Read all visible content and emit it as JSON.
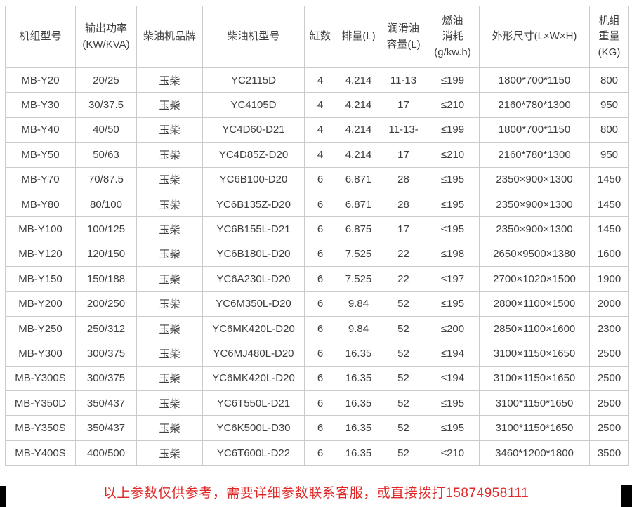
{
  "colors": {
    "table_border": "#cbcbcb",
    "table_text": "#3e3e3e",
    "notice_red": "#e02626",
    "corner_bar_black": "#000000",
    "background": "#ffffff"
  },
  "table": {
    "columns": [
      {
        "key": "model",
        "label": "机组型号"
      },
      {
        "key": "power",
        "label": "输出功率\n(KW/KVA)"
      },
      {
        "key": "brand",
        "label": "柴油机品牌"
      },
      {
        "key": "engine_model",
        "label": "柴油机型号"
      },
      {
        "key": "cylinders",
        "label": "缸数"
      },
      {
        "key": "displacement",
        "label": "排量(L)"
      },
      {
        "key": "oil_capacity",
        "label": "润滑油\n容量(L)"
      },
      {
        "key": "fuel_consumption",
        "label": "燃油\n消耗\n(g/kw.h)"
      },
      {
        "key": "dimensions",
        "label": "外形尺寸(L×W×H)"
      },
      {
        "key": "weight",
        "label": "机组\n重量\n(KG)"
      }
    ],
    "rows": [
      {
        "model": "MB-Y20",
        "power": "20/25",
        "brand": "玉柴",
        "engine_model": "YC2115D",
        "cylinders": "4",
        "displacement": "4.214",
        "oil_capacity": "11-13",
        "fuel_consumption": "≤199",
        "dimensions": "1800*700*1150",
        "weight": "800"
      },
      {
        "model": "MB-Y30",
        "power": "30/37.5",
        "brand": "玉柴",
        "engine_model": "YC4105D",
        "cylinders": "4",
        "displacement": "4.214",
        "oil_capacity": "17",
        "fuel_consumption": "≤210",
        "dimensions": "2160*780*1300",
        "weight": "950"
      },
      {
        "model": "MB-Y40",
        "power": "40/50",
        "brand": "玉柴",
        "engine_model": "YC4D60-D21",
        "cylinders": "4",
        "displacement": "4.214",
        "oil_capacity": "11-13-",
        "fuel_consumption": "≤199",
        "dimensions": "1800*700*1150",
        "weight": "800"
      },
      {
        "model": "MB-Y50",
        "power": "50/63",
        "brand": "玉柴",
        "engine_model": "YC4D85Z-D20",
        "cylinders": "4",
        "displacement": "4.214",
        "oil_capacity": "17",
        "fuel_consumption": "≤210",
        "dimensions": "2160*780*1300",
        "weight": "950"
      },
      {
        "model": "MB-Y70",
        "power": "70/87.5",
        "brand": "玉柴",
        "engine_model": "YC6B100-D20",
        "cylinders": "6",
        "displacement": "6.871",
        "oil_capacity": "28",
        "fuel_consumption": "≤195",
        "dimensions": "2350×900×1300",
        "weight": "1450"
      },
      {
        "model": "MB-Y80",
        "power": "80/100",
        "brand": "玉柴",
        "engine_model": "YC6B135Z-D20",
        "cylinders": "6",
        "displacement": "6.871",
        "oil_capacity": "28",
        "fuel_consumption": "≤195",
        "dimensions": "2350×900×1300",
        "weight": "1450"
      },
      {
        "model": "MB-Y100",
        "power": "100/125",
        "brand": "玉柴",
        "engine_model": "YC6B155L-D21",
        "cylinders": "6",
        "displacement": "6.875",
        "oil_capacity": "17",
        "fuel_consumption": "≤195",
        "dimensions": "2350×900×1300",
        "weight": "1450"
      },
      {
        "model": "MB-Y120",
        "power": "120/150",
        "brand": "玉柴",
        "engine_model": "YC6B180L-D20",
        "cylinders": "6",
        "displacement": "7.525",
        "oil_capacity": "22",
        "fuel_consumption": "≤198",
        "dimensions": "2650×9500×1380",
        "weight": "1600"
      },
      {
        "model": "MB-Y150",
        "power": "150/188",
        "brand": "玉柴",
        "engine_model": "YC6A230L-D20",
        "cylinders": "6",
        "displacement": "7.525",
        "oil_capacity": "22",
        "fuel_consumption": "≤197",
        "dimensions": "2700×1020×1500",
        "weight": "1900"
      },
      {
        "model": "MB-Y200",
        "power": "200/250",
        "brand": "玉柴",
        "engine_model": "YC6M350L-D20",
        "cylinders": "6",
        "displacement": "9.84",
        "oil_capacity": "52",
        "fuel_consumption": "≤195",
        "dimensions": "2800×1100×1500",
        "weight": "2000"
      },
      {
        "model": "MB-Y250",
        "power": "250/312",
        "brand": "玉柴",
        "engine_model": "YC6MK420L-D20",
        "cylinders": "6",
        "displacement": "9.84",
        "oil_capacity": "52",
        "fuel_consumption": "≤200",
        "dimensions": "2850×1100×1600",
        "weight": "2300"
      },
      {
        "model": "MB-Y300",
        "power": "300/375",
        "brand": "玉柴",
        "engine_model": "YC6MJ480L-D20",
        "cylinders": "6",
        "displacement": "16.35",
        "oil_capacity": "52",
        "fuel_consumption": "≤194",
        "dimensions": "3100×1150×1650",
        "weight": "2500"
      },
      {
        "model": "MB-Y300S",
        "power": "300/375",
        "brand": "玉柴",
        "engine_model": "YC6MK420L-D20",
        "cylinders": "6",
        "displacement": "16.35",
        "oil_capacity": "52",
        "fuel_consumption": "≤194",
        "dimensions": "3100×1150×1650",
        "weight": "2500"
      },
      {
        "model": "MB-Y350D",
        "power": "350/437",
        "brand": "玉柴",
        "engine_model": "YC6T550L-D21",
        "cylinders": "6",
        "displacement": "16.35",
        "oil_capacity": "52",
        "fuel_consumption": "≤195",
        "dimensions": "3100*1150*1650",
        "weight": "2500"
      },
      {
        "model": "MB-Y350S",
        "power": "350/437",
        "brand": "玉柴",
        "engine_model": "YC6K500L-D30",
        "cylinders": "6",
        "displacement": "16.35",
        "oil_capacity": "52",
        "fuel_consumption": "≤195",
        "dimensions": "3100*1150*1650",
        "weight": "2500"
      },
      {
        "model": "MB-Y400S",
        "power": "400/500",
        "brand": "玉柴",
        "engine_model": "YC6T600L-D22",
        "cylinders": "6",
        "displacement": "16.35",
        "oil_capacity": "52",
        "fuel_consumption": "≤210",
        "dimensions": "3460*1200*1800",
        "weight": "3500"
      }
    ]
  },
  "footer": {
    "notice": "以上参数仅供参考，需要详细参数联系客服，或直接拨打15874958111"
  }
}
